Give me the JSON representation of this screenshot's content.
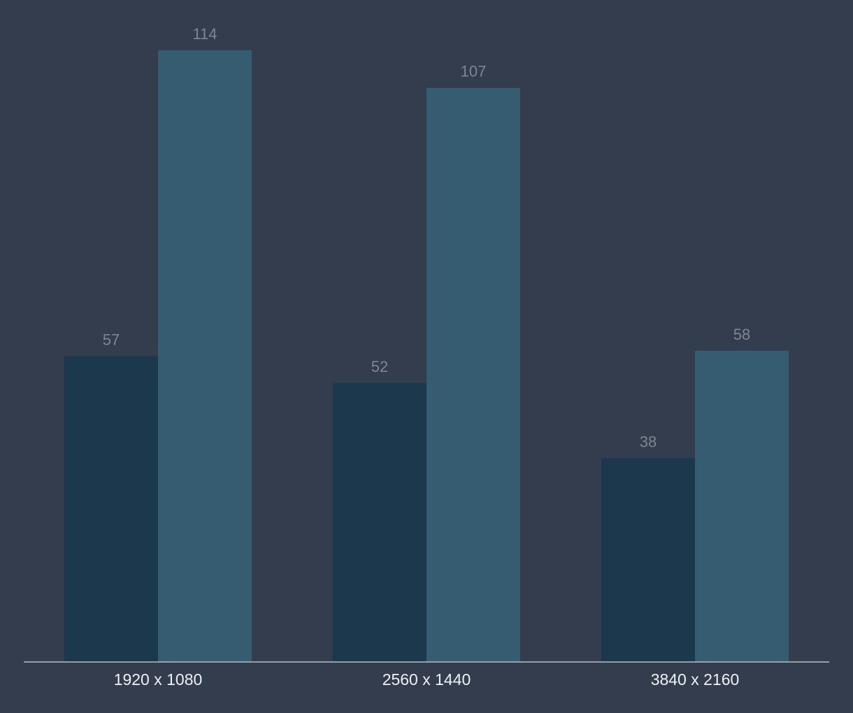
{
  "colors": {
    "background": "#333d4d",
    "axis": "#b8bec6",
    "value_label": "#7c8694",
    "tick_label": "#eef1f4"
  },
  "chart_data": {
    "type": "bar",
    "categories": [
      "1920 x 1080",
      "2560 x 1440",
      "3840 x 2160"
    ],
    "series": [
      {
        "values": [
          57,
          52,
          38
        ],
        "color": "#1b384d"
      },
      {
        "values": [
          114,
          107,
          58
        ],
        "color": "#365c71"
      }
    ],
    "title": "",
    "xlabel": "",
    "ylabel": "",
    "ylim": [
      0,
      114
    ],
    "grid": false,
    "legend": "none",
    "data_labels": true
  }
}
